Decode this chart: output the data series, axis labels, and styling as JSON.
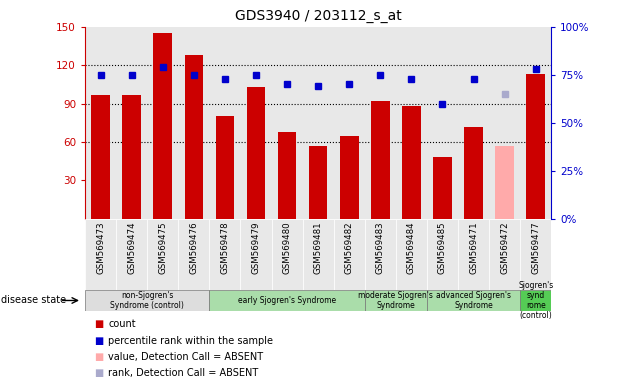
{
  "title": "GDS3940 / 203112_s_at",
  "samples": [
    "GSM569473",
    "GSM569474",
    "GSM569475",
    "GSM569476",
    "GSM569478",
    "GSM569479",
    "GSM569480",
    "GSM569481",
    "GSM569482",
    "GSM569483",
    "GSM569484",
    "GSM569485",
    "GSM569471",
    "GSM569472",
    "GSM569477"
  ],
  "bar_values": [
    97,
    97,
    145,
    128,
    80,
    103,
    68,
    57,
    65,
    92,
    88,
    48,
    72,
    null,
    113
  ],
  "bar_absent_values": [
    null,
    null,
    null,
    null,
    null,
    null,
    null,
    null,
    null,
    null,
    null,
    null,
    null,
    57,
    null
  ],
  "rank_values": [
    75,
    75,
    79,
    75,
    73,
    75,
    70,
    69,
    70,
    75,
    73,
    60,
    73,
    null,
    78
  ],
  "rank_absent_values": [
    null,
    null,
    null,
    null,
    null,
    null,
    null,
    null,
    null,
    null,
    null,
    null,
    null,
    65,
    null
  ],
  "bar_color": "#cc0000",
  "bar_absent_color": "#ffaaaa",
  "rank_color": "#0000cc",
  "rank_absent_color": "#aaaacc",
  "ylim_left": [
    0,
    150
  ],
  "ylim_right": [
    0,
    100
  ],
  "yticks_left": [
    30,
    60,
    90,
    120,
    150
  ],
  "yticks_right": [
    0,
    25,
    50,
    75,
    100
  ],
  "hlines": [
    60,
    90,
    120
  ],
  "groups": [
    {
      "label": "non-Sjogren's\nSyndrome (control)",
      "start": 0,
      "end": 3,
      "color": "#cceecc"
    },
    {
      "label": "early Sjogren's Syndrome",
      "start": 4,
      "end": 8,
      "color": "#cceecc"
    },
    {
      "label": "moderate Sjogren's\nSyndrome",
      "start": 9,
      "end": 10,
      "color": "#aaddaa"
    },
    {
      "label": "advanced Sjogren's\nSyndrome",
      "start": 11,
      "end": 13,
      "color": "#aaddaa"
    },
    {
      "label": "Sjogren's synd\nrome\n(control)",
      "start": 14,
      "end": 14,
      "color": "#55cc55"
    }
  ],
  "bg_color": "#e8e8e8",
  "disease_state_label": "disease state",
  "legend_items": [
    {
      "label": "count",
      "color": "#cc0000",
      "marker": "s"
    },
    {
      "label": "percentile rank within the sample",
      "color": "#0000cc",
      "marker": "s"
    },
    {
      "label": "value, Detection Call = ABSENT",
      "color": "#ffaaaa",
      "marker": "s"
    },
    {
      "label": "rank, Detection Call = ABSENT",
      "color": "#aaaacc",
      "marker": "s"
    }
  ]
}
